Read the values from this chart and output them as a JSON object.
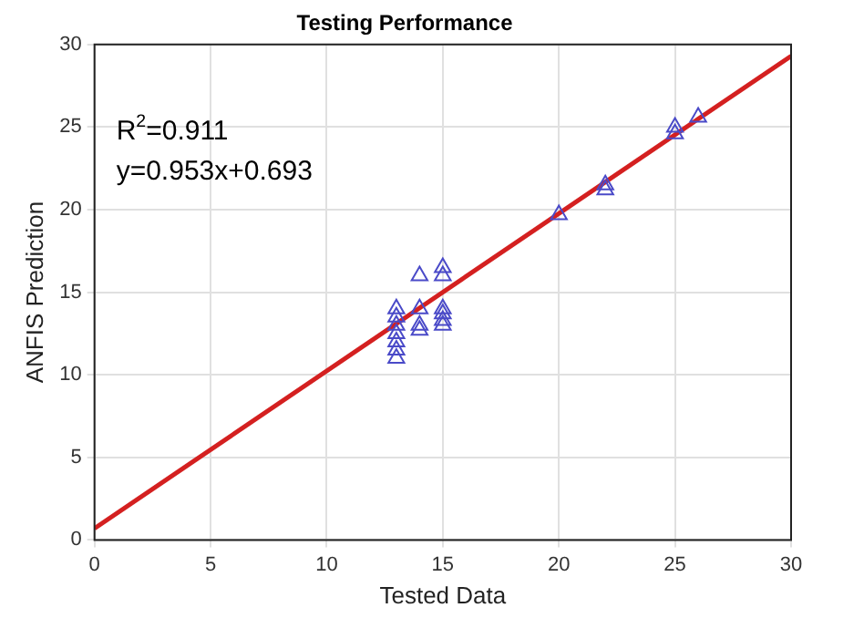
{
  "chart_data": {
    "type": "scatter",
    "title": "Testing Performance",
    "xlabel": "Tested Data",
    "ylabel": "ANFIS Prediction",
    "xlim": [
      0,
      30
    ],
    "xticks": [
      0,
      5,
      10,
      15,
      20,
      25,
      30
    ],
    "ylim": [
      0,
      30
    ],
    "yticks": [
      0,
      5,
      10,
      15,
      20,
      25,
      30
    ],
    "grid": true,
    "marker": "triangle",
    "annotations": [
      "R$^{2}$=0.911",
      "y=0.953x+0.693"
    ],
    "series": [
      {
        "color": "#4a4ac8",
        "x": [
          13,
          13,
          13,
          13,
          13,
          13,
          13,
          14,
          14,
          14,
          14,
          15,
          15,
          15,
          15,
          15,
          15,
          20,
          22,
          22,
          25,
          25,
          26
        ],
        "values": [
          11,
          11.5,
          12,
          12.5,
          13,
          13.5,
          14,
          16,
          14,
          13,
          12.7,
          16.5,
          16,
          14,
          13.7,
          13.3,
          13,
          19.7,
          21.2,
          21.5,
          24.6,
          25,
          25.6
        ]
      },
      {
        "type": "line",
        "color": "#d42020",
        "marker": "none",
        "x": [
          0,
          30
        ],
        "values": [
          0.7,
          29.3
        ]
      }
    ]
  }
}
